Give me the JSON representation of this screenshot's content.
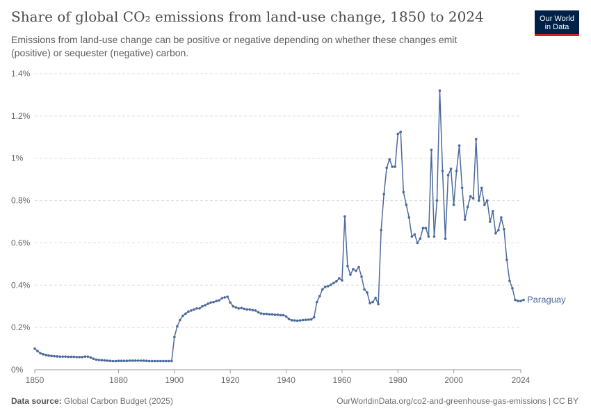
{
  "header": {
    "title": "Share of global CO₂ emissions from land-use change, 1850 to 2024",
    "subtitle": "Emissions from land-use change can be positive or negative depending on whether these changes emit (positive) or sequester (negative) carbon."
  },
  "logo": {
    "line1": "Our World",
    "line2": "in Data"
  },
  "footer": {
    "source_label": "Data source:",
    "source_value": "Global Carbon Budget (2025)",
    "url": "OurWorldinData.org/co2-and-greenhouse-gas-emissions | CC BY"
  },
  "colors": {
    "series": "#4c6a9c",
    "grid": "#dddddd",
    "axis": "#666666"
  },
  "chart_data": {
    "type": "line",
    "title": "Share of global CO₂ emissions from land-use change, 1850 to 2024",
    "xlabel": "",
    "ylabel": "",
    "xlim": [
      1850,
      2024
    ],
    "ylim": [
      0,
      1.4
    ],
    "x_ticks": [
      1850,
      1880,
      1900,
      1920,
      1940,
      1960,
      1980,
      2000,
      2024
    ],
    "y_ticks": [
      0,
      0.2,
      0.4,
      0.6,
      0.8,
      1,
      1.2,
      1.4
    ],
    "y_tick_labels": [
      "0%",
      "0.2%",
      "0.4%",
      "0.6%",
      "0.8%",
      "1%",
      "1.2%",
      "1.4%"
    ],
    "grid": "horizontal dashed",
    "series": [
      {
        "name": "Paraguay",
        "x_start": 1850,
        "values": [
          0.1,
          0.088,
          0.078,
          0.073,
          0.07,
          0.067,
          0.065,
          0.064,
          0.063,
          0.062,
          0.062,
          0.062,
          0.061,
          0.061,
          0.061,
          0.06,
          0.06,
          0.06,
          0.062,
          0.062,
          0.058,
          0.052,
          0.048,
          0.046,
          0.045,
          0.044,
          0.043,
          0.042,
          0.041,
          0.041,
          0.042,
          0.042,
          0.042,
          0.042,
          0.043,
          0.043,
          0.043,
          0.043,
          0.043,
          0.043,
          0.042,
          0.041,
          0.041,
          0.041,
          0.041,
          0.041,
          0.041,
          0.041,
          0.041,
          0.041,
          0.155,
          0.205,
          0.235,
          0.255,
          0.265,
          0.275,
          0.28,
          0.285,
          0.29,
          0.29,
          0.3,
          0.305,
          0.312,
          0.318,
          0.32,
          0.325,
          0.328,
          0.338,
          0.342,
          0.345,
          0.318,
          0.3,
          0.295,
          0.29,
          0.292,
          0.288,
          0.285,
          0.285,
          0.282,
          0.28,
          0.272,
          0.266,
          0.264,
          0.264,
          0.262,
          0.262,
          0.26,
          0.26,
          0.258,
          0.258,
          0.252,
          0.24,
          0.234,
          0.233,
          0.232,
          0.233,
          0.235,
          0.236,
          0.237,
          0.238,
          0.248,
          0.32,
          0.348,
          0.38,
          0.392,
          0.395,
          0.402,
          0.41,
          0.418,
          0.432,
          0.422,
          0.725,
          0.49,
          0.45,
          0.475,
          0.468,
          0.485,
          0.44,
          0.38,
          0.365,
          0.315,
          0.32,
          0.34,
          0.31,
          0.66,
          0.83,
          0.955,
          0.995,
          0.96,
          0.96,
          1.115,
          1.125,
          0.84,
          0.78,
          0.72,
          0.63,
          0.64,
          0.6,
          0.62,
          0.67,
          0.67,
          0.63,
          1.04,
          0.63,
          0.8,
          1.32,
          0.94,
          0.62,
          0.92,
          0.95,
          0.78,
          0.94,
          1.06,
          0.86,
          0.71,
          0.77,
          0.82,
          0.81,
          1.09,
          0.8,
          0.86,
          0.78,
          0.8,
          0.7,
          0.75,
          0.645,
          0.66,
          0.72,
          0.665,
          0.52,
          0.42,
          0.385,
          0.33,
          0.325,
          0.325,
          0.33
        ]
      }
    ]
  }
}
